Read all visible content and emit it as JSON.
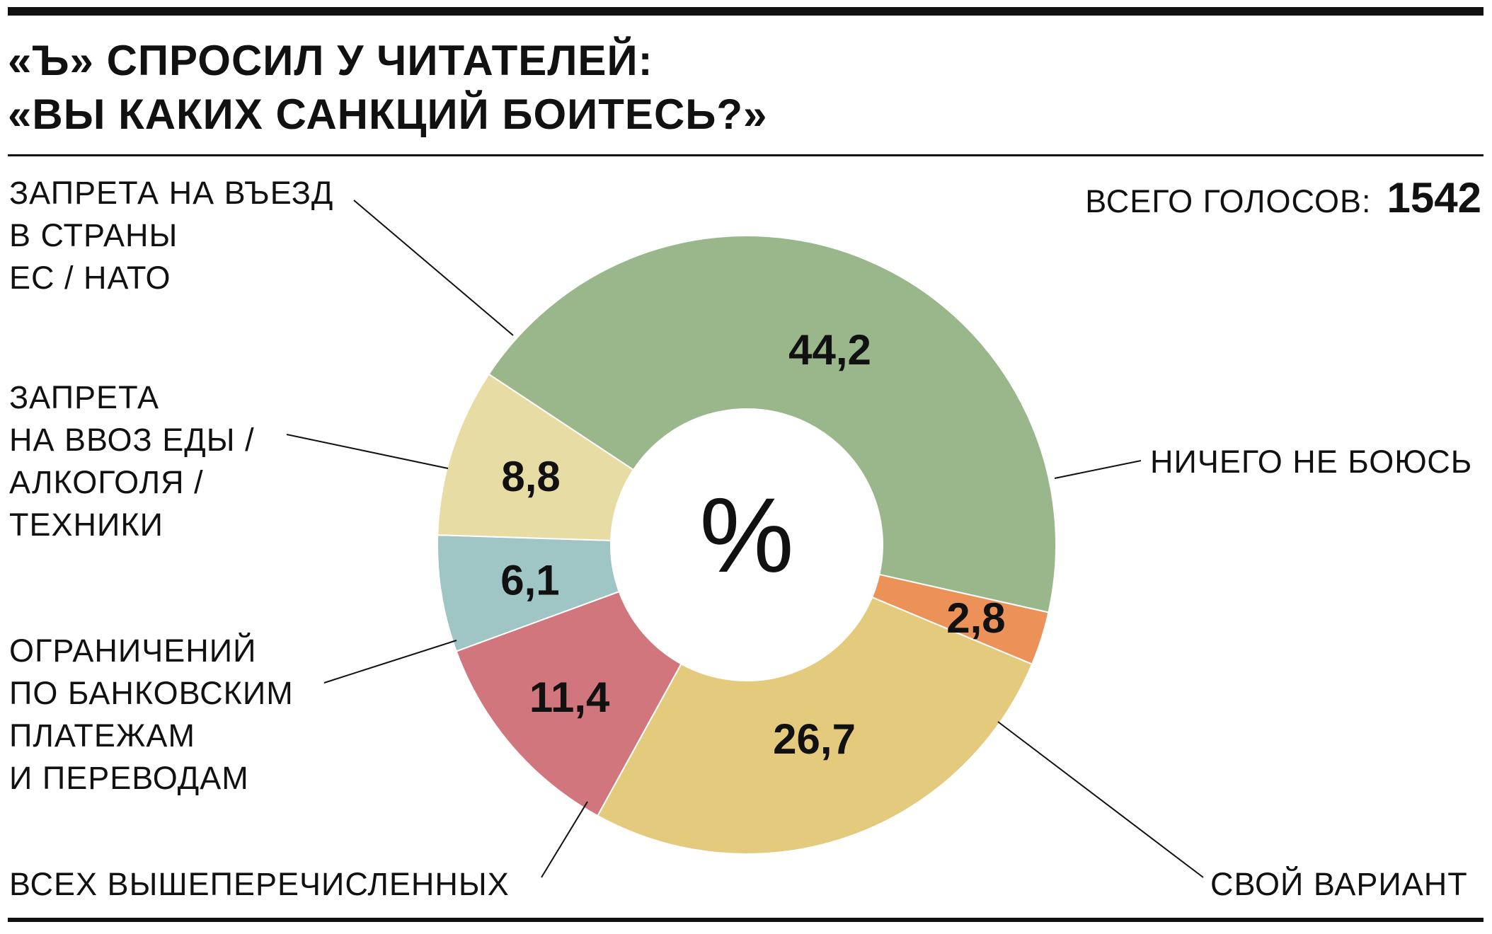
{
  "title": {
    "line1": "«Ъ» СПРОСИЛ У ЧИТАТЕЛЕЙ:",
    "line2": "«ВЫ КАКИХ САНКЦИЙ БОИТЕСЬ?»"
  },
  "total": {
    "label": "ВСЕГО ГОЛОСОВ:",
    "value": "1542"
  },
  "unit": "%",
  "chart_data": {
    "type": "pie",
    "style": "donut",
    "unit": "%",
    "slices": [
      {
        "label": "НИЧЕГО НЕ БОЮСЬ",
        "label_lines": [
          "НИЧЕГО НЕ БОЮСЬ"
        ],
        "value": 44.2,
        "value_text": "44,2",
        "color": "#99b78a"
      },
      {
        "label": "СВОЙ ВАРИАНТ",
        "label_lines": [
          "СВОЙ ВАРИАНТ"
        ],
        "value": 2.8,
        "value_text": "2,8",
        "color": "#ec9158"
      },
      {
        "label": "ВСЕХ ВЫШЕПЕРЕЧИСЛЕННЫХ",
        "label_lines": [
          "ВСЕХ ВЫШЕПЕРЕЧИСЛЕННЫХ"
        ],
        "value": 26.7,
        "value_text": "26,7",
        "color": "#e4ca7c"
      },
      {
        "label": "ОГРАНИЧЕНИЙ ПО БАНКОВСКИМ ПЛАТЕЖАМ И ПЕРЕВОДАМ",
        "label_lines": [
          "ОГРАНИЧЕНИЙ",
          "ПО БАНКОВСКИМ",
          "ПЛАТЕЖАМ",
          "И ПЕРЕВОДАМ"
        ],
        "value": 11.4,
        "value_text": "11,4",
        "color": "#d0767c"
      },
      {
        "label": "ЗАПРЕТА НА ВВОЗ ЕДЫ / АЛКОГОЛЯ / ТЕХНИКИ",
        "label_lines": [
          "ЗАПРЕТА",
          "НА ВВОЗ ЕДЫ /",
          "АЛКОГОЛЯ /",
          "ТЕХНИКИ"
        ],
        "value": 6.1,
        "value_text": "6,1",
        "color": "#9fc5c5"
      },
      {
        "label": "ЗАПРЕТА НА ВЪЕЗД В СТРАНЫ ЕС / НАТО",
        "label_lines": [
          "ЗАПРЕТА НА ВЪЕЗД",
          "В СТРАНЫ",
          "ЕС / НАТО"
        ],
        "value": 8.8,
        "value_text": "8,8",
        "color": "#e8dca5"
      }
    ]
  }
}
